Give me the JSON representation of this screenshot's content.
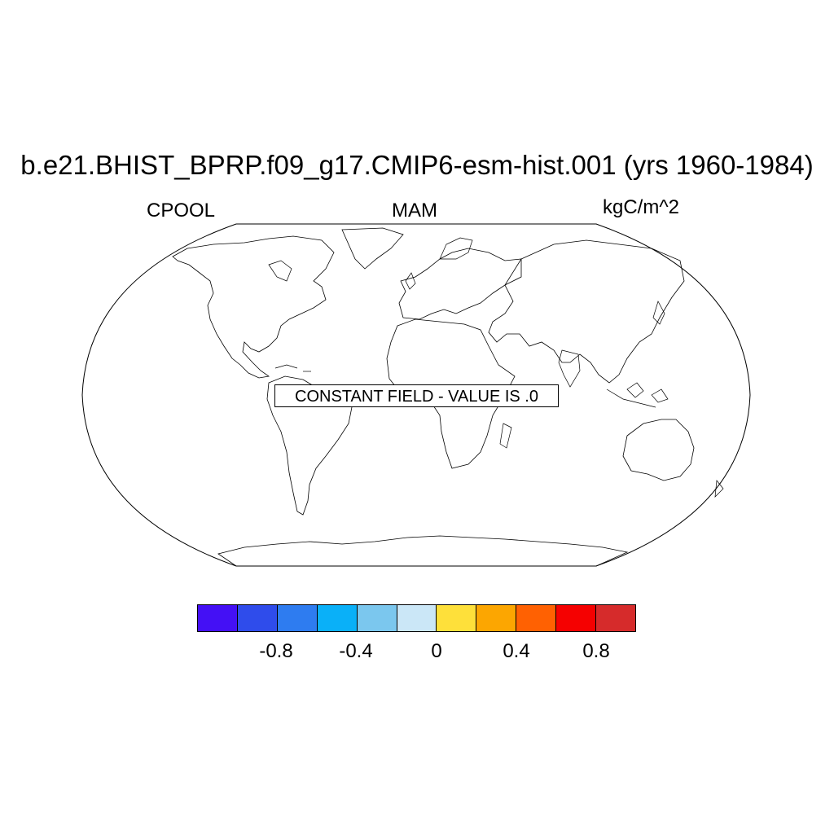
{
  "figure": {
    "title": "b.e21.BHIST_BPRP.f09_g17.CMIP6-esm-hist.001 (yrs 1960-1984)",
    "left_label": "CPOOL",
    "center_label": "MAM",
    "right_label": "kgC/m^2",
    "projection": "Robinson",
    "annotation": "CONSTANT FIELD - VALUE IS .0"
  },
  "colorbar": {
    "colors": [
      "#4410F5",
      "#2F4CEB",
      "#2E7CF0",
      "#0AB0F8",
      "#7BC7EE",
      "#CBE7F7",
      "#FEE03A",
      "#FCA601",
      "#FF6102",
      "#F50101",
      "#D62B2B"
    ],
    "tick_labels": [
      "-0.8",
      "-0.4",
      "0",
      "0.4",
      "0.8"
    ]
  }
}
